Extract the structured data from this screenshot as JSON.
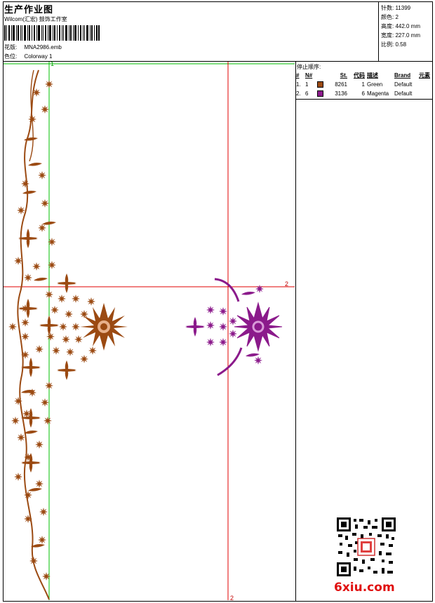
{
  "header": {
    "title": "生产作业图",
    "company": "Wilcom(汇宏) 鼓饰工作室",
    "design_label": "花版:",
    "design_value": "MNA2986.emb",
    "colorway_label": "色位:",
    "colorway_value": "Colorway 1"
  },
  "stats": {
    "stitches": "针数: 11399",
    "colors": "颜色: 2",
    "height": "高度: 442.0 mm",
    "width": "宽度: 227.0 mm",
    "scale": "比例: 0.58"
  },
  "stop_sequence": {
    "title": "停止顺序:",
    "columns": [
      "#",
      "N#",
      "St.",
      "代码",
      "描述",
      "Brand",
      "元素"
    ],
    "rows": [
      {
        "idx": "1.",
        "n": "1",
        "color": "#9b4a12",
        "st": "8261",
        "code": "1",
        "desc": "Green",
        "brand": "Default"
      },
      {
        "idx": "2.",
        "n": "6",
        "color": "#8b1a8b",
        "st": "3136",
        "code": "6",
        "desc": "Magenta",
        "brand": "Default"
      }
    ]
  },
  "guides": {
    "label_2_right": "2",
    "label_2_bottom": "2",
    "label_1": "1"
  },
  "watermark": {
    "site": "6xiu.com"
  },
  "colors": {
    "thread1": "#9b4a12",
    "thread2": "#8b1a8b",
    "guide_red": "#e00000",
    "guide_green": "#00c000"
  }
}
